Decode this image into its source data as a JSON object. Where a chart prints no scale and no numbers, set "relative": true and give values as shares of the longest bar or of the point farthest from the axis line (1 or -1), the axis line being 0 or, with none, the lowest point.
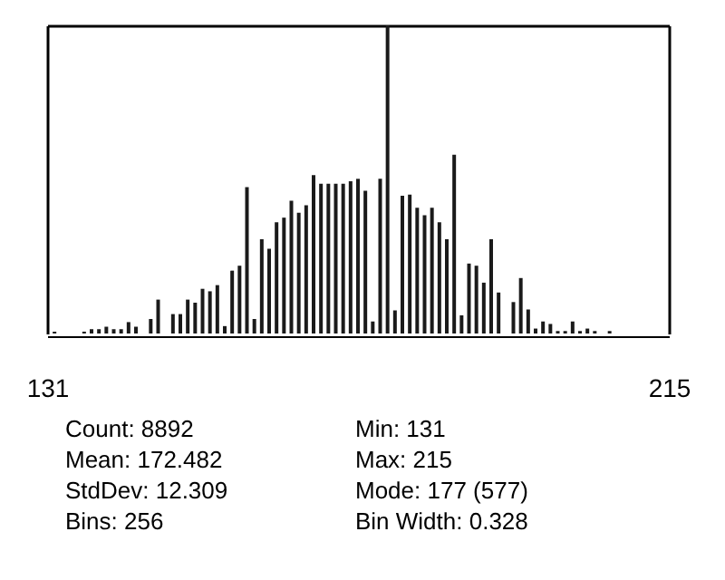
{
  "chart_data": {
    "type": "bar",
    "relative": true,
    "color": "#1a1a1a",
    "x": [
      132,
      136,
      137,
      138,
      139,
      140,
      141,
      142,
      143,
      145,
      146,
      148,
      149,
      150,
      151,
      152,
      153,
      154,
      155,
      156,
      157,
      158,
      159,
      160,
      161,
      162,
      163,
      164,
      165,
      166,
      167,
      168,
      169,
      170,
      171,
      172,
      173,
      174,
      175,
      176,
      177,
      178,
      179,
      180,
      181,
      182,
      183,
      184,
      185,
      186,
      187,
      188,
      189,
      190,
      191,
      192,
      194,
      195,
      196,
      197,
      198,
      199,
      200,
      201,
      202,
      203,
      204,
      205,
      207
    ],
    "values": [
      0.006,
      0.006,
      0.014,
      0.014,
      0.022,
      0.014,
      0.014,
      0.037,
      0.022,
      0.047,
      0.11,
      0.063,
      0.063,
      0.11,
      0.1,
      0.145,
      0.137,
      0.157,
      0.024,
      0.204,
      0.22,
      0.475,
      0.047,
      0.306,
      0.275,
      0.361,
      0.376,
      0.431,
      0.392,
      0.416,
      0.514,
      0.486,
      0.486,
      0.486,
      0.486,
      0.494,
      0.502,
      0.463,
      0.039,
      0.502,
      1.0,
      0.075,
      0.447,
      0.451,
      0.408,
      0.384,
      0.408,
      0.361,
      0.306,
      0.58,
      0.059,
      0.227,
      0.22,
      0.165,
      0.306,
      0.133,
      0.102,
      0.18,
      0.078,
      0.016,
      0.039,
      0.031,
      0.008,
      0.008,
      0.039,
      0.008,
      0.016,
      0.008,
      0.008
    ],
    "xlim": [
      131,
      215
    ],
    "xticks": [
      131,
      215
    ],
    "annotations": [
      "Count: 8892",
      "Mean: 172.482",
      "StdDev: 12.309",
      "Bins: 256",
      "Min: 131",
      "Max: 215",
      "Mode: 177 (577)",
      "Bin Width: 0.328"
    ]
  }
}
